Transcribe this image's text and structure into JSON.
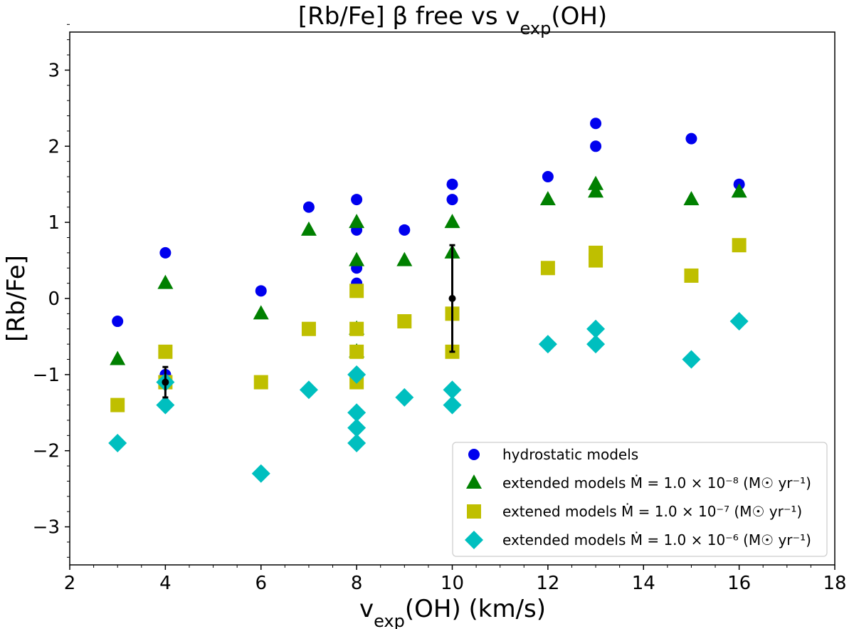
{
  "chart_data": {
    "type": "scatter",
    "title": "[Rb/Fe] β free vs v",
    "title_sub": "exp",
    "title_tail": "(OH)",
    "xlabel": "v",
    "xlabel_sub": "exp",
    "xlabel_tail": "(OH) (km/s)",
    "ylabel": "[Rb/Fe]",
    "xlim": [
      2,
      18
    ],
    "ylim": [
      -3.5,
      3.5
    ],
    "xticks": [
      2,
      4,
      6,
      8,
      10,
      12,
      14,
      16,
      18
    ],
    "yticks": [
      -3,
      -2,
      -1,
      0,
      1,
      2,
      3
    ],
    "grid": false,
    "legend_position": "lower-right",
    "series": [
      {
        "name": "hydrostatic models",
        "marker": "circle",
        "color": "#0000ee",
        "points": [
          [
            3,
            -0.3
          ],
          [
            4,
            0.6
          ],
          [
            4,
            -1.0
          ],
          [
            6,
            0.1
          ],
          [
            7,
            1.2
          ],
          [
            8,
            1.3
          ],
          [
            8,
            0.9
          ],
          [
            8,
            0.4
          ],
          [
            8,
            0.2
          ],
          [
            9,
            0.9
          ],
          [
            10,
            1.5
          ],
          [
            10,
            1.3
          ],
          [
            12,
            1.6
          ],
          [
            13,
            2.3
          ],
          [
            13,
            2.0
          ],
          [
            15,
            2.1
          ],
          [
            16,
            1.5
          ]
        ]
      },
      {
        "name": "extended models Ṁ = 1.0 × 10⁻⁸ (M☉ yr⁻¹)",
        "marker": "triangle",
        "color": "#008000",
        "points": [
          [
            3,
            -0.8
          ],
          [
            4,
            0.2
          ],
          [
            6,
            -0.2
          ],
          [
            7,
            0.9
          ],
          [
            8,
            1.0
          ],
          [
            8,
            0.5
          ],
          [
            8,
            -0.4
          ],
          [
            8,
            -0.7
          ],
          [
            9,
            0.5
          ],
          [
            10,
            1.0
          ],
          [
            10,
            0.6
          ],
          [
            12,
            1.3
          ],
          [
            13,
            1.5
          ],
          [
            13,
            1.4
          ],
          [
            15,
            1.3
          ],
          [
            16,
            1.4
          ]
        ]
      },
      {
        "name": "extened models Ṁ = 1.0 × 10⁻⁷ (M☉ yr⁻¹)",
        "marker": "square",
        "color": "#bfbf00",
        "points": [
          [
            3,
            -1.4
          ],
          [
            4,
            -0.7
          ],
          [
            4,
            -1.1
          ],
          [
            6,
            -1.1
          ],
          [
            7,
            -0.4
          ],
          [
            8,
            0.1
          ],
          [
            8,
            -0.4
          ],
          [
            8,
            -0.7
          ],
          [
            8,
            -1.1
          ],
          [
            9,
            -0.3
          ],
          [
            10,
            -0.2
          ],
          [
            10,
            -0.7
          ],
          [
            12,
            0.4
          ],
          [
            13,
            0.6
          ],
          [
            13,
            0.5
          ],
          [
            15,
            0.3
          ],
          [
            16,
            0.7
          ]
        ]
      },
      {
        "name": "extended models Ṁ = 1.0 × 10⁻⁶ (M☉ yr⁻¹)",
        "marker": "diamond",
        "color": "#00bfbf",
        "points": [
          [
            3,
            -1.9
          ],
          [
            4,
            -1.1
          ],
          [
            4,
            -1.4
          ],
          [
            6,
            -2.3
          ],
          [
            7,
            -1.2
          ],
          [
            8,
            -1.0
          ],
          [
            8,
            -1.5
          ],
          [
            8,
            -1.7
          ],
          [
            8,
            -1.9
          ],
          [
            9,
            -1.3
          ],
          [
            10,
            -1.2
          ],
          [
            10,
            -1.4
          ],
          [
            12,
            -0.6
          ],
          [
            13,
            -0.4
          ],
          [
            13,
            -0.6
          ],
          [
            15,
            -0.8
          ],
          [
            16,
            -0.3
          ]
        ]
      }
    ],
    "observed": {
      "color": "#000000",
      "points": [
        {
          "x": 10,
          "y": 0.0,
          "yerr_low": -0.7,
          "yerr_high": 0.7
        },
        {
          "x": 4,
          "y": -1.1,
          "yerr_low": -1.3,
          "yerr_high": -0.9
        }
      ]
    }
  }
}
